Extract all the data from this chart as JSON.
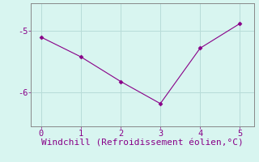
{
  "x": [
    0,
    1,
    2,
    3,
    4,
    5
  ],
  "y": [
    -5.1,
    -5.42,
    -5.82,
    -6.18,
    -5.28,
    -4.88
  ],
  "line_color": "#880088",
  "marker": "D",
  "marker_size": 2.5,
  "background_color": "#d8f5f0",
  "grid_color": "#b8dcd8",
  "xlabel": "Windchill (Refroidissement éolien,°C)",
  "xlabel_color": "#880088",
  "xlabel_fontsize": 8,
  "yticks": [
    -6,
    -5
  ],
  "ytick_labels": [
    "-6",
    "-5"
  ],
  "xticks": [
    0,
    1,
    2,
    3,
    4,
    5
  ],
  "xlim": [
    -0.25,
    5.35
  ],
  "ylim": [
    -6.55,
    -4.55
  ],
  "tick_color": "#880088",
  "tick_fontsize": 7.5,
  "spine_color": "#888888",
  "linestyle": "-",
  "linewidth": 0.8
}
